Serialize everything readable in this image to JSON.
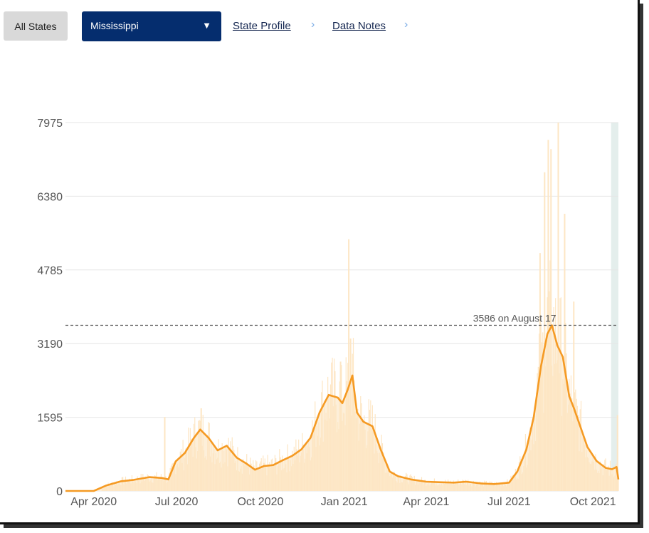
{
  "controls": {
    "all_states_label": "All States",
    "state_select": {
      "value": "Mississippi",
      "arrow": "▼"
    },
    "links": [
      "State Profile",
      "Data Notes"
    ],
    "chevron": "›"
  },
  "colors": {
    "line": "#f59a23",
    "bars": "#fde6c4",
    "area": "#fdefd9",
    "grid": "#e6e6e6",
    "incomplete_band": "#e4eeec",
    "select_bg": "#052d6e"
  },
  "chart_data": {
    "type": "line",
    "series": [
      {
        "name": "",
        "kind": "7-day average",
        "points": [
          [
            "2020-03-01",
            0
          ],
          [
            "2020-04-01",
            0
          ],
          [
            "2020-04-15",
            120
          ],
          [
            "2020-05-01",
            210
          ],
          [
            "2020-05-15",
            240
          ],
          [
            "2020-06-01",
            300
          ],
          [
            "2020-06-15",
            280
          ],
          [
            "2020-06-22",
            250
          ],
          [
            "2020-06-30",
            640
          ],
          [
            "2020-07-10",
            820
          ],
          [
            "2020-07-20",
            1150
          ],
          [
            "2020-07-27",
            1330
          ],
          [
            "2020-08-05",
            1150
          ],
          [
            "2020-08-15",
            880
          ],
          [
            "2020-08-25",
            980
          ],
          [
            "2020-09-05",
            720
          ],
          [
            "2020-09-15",
            600
          ],
          [
            "2020-09-25",
            460
          ],
          [
            "2020-10-05",
            540
          ],
          [
            "2020-10-15",
            560
          ],
          [
            "2020-10-25",
            660
          ],
          [
            "2020-11-05",
            760
          ],
          [
            "2020-11-15",
            900
          ],
          [
            "2020-11-25",
            1150
          ],
          [
            "2020-12-05",
            1700
          ],
          [
            "2020-12-15",
            2080
          ],
          [
            "2020-12-25",
            2020
          ],
          [
            "2020-12-30",
            1900
          ],
          [
            "2021-01-05",
            2200
          ],
          [
            "2021-01-10",
            2500
          ],
          [
            "2021-01-15",
            1700
          ],
          [
            "2021-01-22",
            1500
          ],
          [
            "2021-02-01",
            1400
          ],
          [
            "2021-02-10",
            900
          ],
          [
            "2021-02-20",
            420
          ],
          [
            "2021-03-01",
            320
          ],
          [
            "2021-03-15",
            250
          ],
          [
            "2021-04-01",
            200
          ],
          [
            "2021-04-15",
            190
          ],
          [
            "2021-05-01",
            180
          ],
          [
            "2021-05-15",
            200
          ],
          [
            "2021-06-01",
            160
          ],
          [
            "2021-06-15",
            150
          ],
          [
            "2021-07-01",
            180
          ],
          [
            "2021-07-10",
            420
          ],
          [
            "2021-07-20",
            900
          ],
          [
            "2021-07-28",
            1600
          ],
          [
            "2021-08-05",
            2700
          ],
          [
            "2021-08-12",
            3400
          ],
          [
            "2021-08-17",
            3586
          ],
          [
            "2021-08-23",
            3150
          ],
          [
            "2021-08-29",
            2900
          ],
          [
            "2021-09-05",
            2050
          ],
          [
            "2021-09-10",
            1800
          ],
          [
            "2021-09-18",
            1350
          ],
          [
            "2021-09-25",
            950
          ],
          [
            "2021-10-05",
            650
          ],
          [
            "2021-10-15",
            500
          ],
          [
            "2021-10-22",
            470
          ],
          [
            "2021-10-27",
            520
          ],
          [
            "2021-10-29",
            250
          ]
        ]
      },
      {
        "name": "",
        "kind": "daily",
        "points": [
          [
            "2020-06-18",
            1600
          ],
          [
            "2020-07-28",
            1790
          ],
          [
            "2020-12-28",
            2800
          ],
          [
            "2021-01-06",
            5450
          ],
          [
            "2021-01-08",
            3300
          ],
          [
            "2021-08-04",
            5150
          ],
          [
            "2021-08-09",
            6900
          ],
          [
            "2021-08-13",
            7600
          ],
          [
            "2021-08-16",
            7400
          ],
          [
            "2021-08-24",
            7975
          ],
          [
            "2021-08-31",
            6000
          ],
          [
            "2021-09-10",
            4100
          ],
          [
            "2021-10-28",
            1640
          ]
        ]
      }
    ],
    "yticks": [
      "0",
      "1595",
      "3190",
      "4785",
      "6380",
      "7975"
    ],
    "xticks": [
      "Apr 2020",
      "Jul 2020",
      "Oct 2020",
      "Jan 2021",
      "Apr 2021",
      "Jul 2021",
      "Oct 2021"
    ],
    "ylim": [
      0,
      7975
    ],
    "xlim": [
      "2020-03-01",
      "2021-10-29"
    ],
    "peak_annotation": {
      "label": "3586 on August 17",
      "value": 3586,
      "date": "2021-08-17"
    },
    "grid": true,
    "incomplete_data_band": [
      "2021-10-21",
      "2021-10-29"
    ]
  }
}
